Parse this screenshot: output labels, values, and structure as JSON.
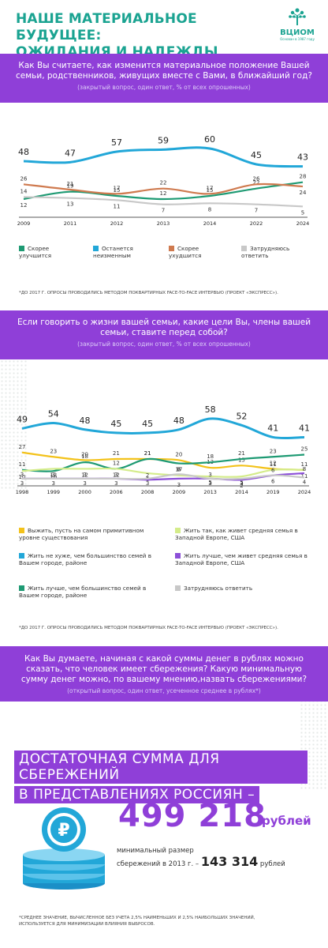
{
  "header": {
    "title_line1": "НАШЕ МАТЕРИАЛЬНОЕ БУДУЩЕЕ:",
    "title_line2": "ОЖИДАНИЯ И НАДЕЖДЫ",
    "logo_text": "ВЦИОМ",
    "logo_sub": "Основан в 1987 году"
  },
  "colors": {
    "purple": "#8f3fd8",
    "teal": "#1aa391",
    "blue": "#22a7d8",
    "orange": "#cf7a4f",
    "grey": "#c8c8c8",
    "yellow": "#f3c21a",
    "lightgreen": "#d4ec8a",
    "violet": "#8c4fd8",
    "darkgreen": "#1e9a73"
  },
  "q1": {
    "question": "Как Вы считаете, как изменится материальное положение Вашей семьи, родственников, живущих вместе с Вами, в ближайший год?",
    "note": "(закрытый вопрос, один ответ, % от всех опрошенных)",
    "footnote": "*ДО 2017 Г. ОПРОСЫ ПРОВОДИЛИСЬ МЕТОДОМ ПОКВАРТИРНЫХ FACE-TO-FACE ИНТЕРВЬЮ (ПРОЕКТ «ЭКСПРЕСС»)."
  },
  "q2": {
    "question": "Если говорить о жизни вашей семьи, какие цели Вы, члены вашей семьи, ставите перед собой?",
    "note": "(закрытый вопрос, один ответ, % от всех опрошенных)",
    "footnote": "*ДО 2017 Г. ОПРОСЫ ПРОВОДИЛИСЬ МЕТОДОМ ПОКВАРТИРНЫХ FACE-TO-FACE ИНТЕРВЬЮ (ПРОЕКТ «ЭКСПРЕСС»)."
  },
  "q3": {
    "question": "Как Вы думаете, начиная с какой суммы денег в рублях можно сказать, что человек имеет сбережения? Какую минимальную сумму денег можно, по вашему мнению,назвать сбережениями?",
    "note": "(открытый вопрос, один ответ, усеченное среднее в рублях*)"
  },
  "summary": {
    "line1": "ДОСТАТОЧНАЯ СУММА ДЛЯ СБЕРЕЖЕНИЙ",
    "line2": "В ПРЕДСТАВЛЕНИЯХ РОССИЯН –",
    "amount": "499 218",
    "unit": "рублей",
    "min_label_1": "минимальный размер",
    "min_label_2": "сбережений в 2013 г. –",
    "min_amount": "143 314",
    "min_unit": "рублей",
    "footnote": "*СРЕДНЕЕ ЗНАЧЕНИЕ, ВЫЧИСЛЕННОЕ БЕЗ УЧЕТА 2,5% НАИМЕНЬШИХ И 2,5% НАИБОЛЬШИХ ЗНАЧЕНИЙ, ИСПОЛЬЗУЕТСЯ ДЛЯ МИНИМИЗАЦИИ ВЛИЯНИЯ ВЫБРОСОВ."
  },
  "chart_data": [
    {
      "type": "line",
      "x": [
        "2009",
        "2011",
        "2012",
        "2013",
        "2014",
        "2022",
        "2024"
      ],
      "series": [
        {
          "name": "Скорее улучшится",
          "color": "#1e9a73",
          "values": [
            12,
            19,
            15,
            12,
            15,
            22,
            28
          ]
        },
        {
          "name": "Останется неизменным",
          "color": "#22a7d8",
          "values": [
            48,
            47,
            57,
            59,
            60,
            45,
            43
          ]
        },
        {
          "name": "Скорее ухудшится",
          "color": "#cf7a4f",
          "values": [
            26,
            21,
            17,
            22,
            17,
            26,
            24
          ]
        },
        {
          "name": "Затрудняюсь ответить",
          "color": "#c8c8c8",
          "values": [
            14,
            13,
            11,
            7,
            8,
            7,
            5
          ]
        }
      ]
    },
    {
      "type": "line",
      "x": [
        "1998",
        "1999",
        "2000",
        "2006",
        "2008",
        "2009",
        "2013",
        "2014",
        "2019",
        "2024"
      ],
      "series": [
        {
          "name": "Выжить, пусть на самом примитивном уровне существования",
          "color": "#f3c21a",
          "values": [
            27,
            23,
            20,
            21,
            21,
            20,
            13,
            15,
            12,
            11
          ]
        },
        {
          "name": "Жить не хуже, чем большинство семей в Вашем городе, районе",
          "color": "#22a7d8",
          "values": [
            49,
            54,
            48,
            45,
            45,
            48,
            58,
            52,
            41,
            41
          ]
        },
        {
          "name": "Жить лучше, чем большинство семей в Вашем городе, районе",
          "color": "#1e9a73",
          "values": [
            11,
            10,
            18,
            12,
            21,
            17,
            18,
            21,
            23,
            25
          ]
        },
        {
          "name": "Жить так, как живет средняя семья в Западной Европе, США",
          "color": "#d4ec8a",
          "values": [
            10,
            12,
            12,
            12,
            8,
            6,
            5,
            5,
            11,
            11
          ]
        },
        {
          "name": "Жить лучше, чем живет средняя семья в Западной Европе, США",
          "color": "#8c4fd8",
          "values": [
            3,
            3,
            3,
            3,
            2,
            3,
            3,
            2,
            6,
            8
          ]
        },
        {
          "name": "Затрудняюсь ответить",
          "color": "#c8c8c8",
          "values": [
            3,
            3,
            3,
            3,
            3,
            7,
            3,
            3,
            6,
            4
          ]
        }
      ]
    }
  ]
}
